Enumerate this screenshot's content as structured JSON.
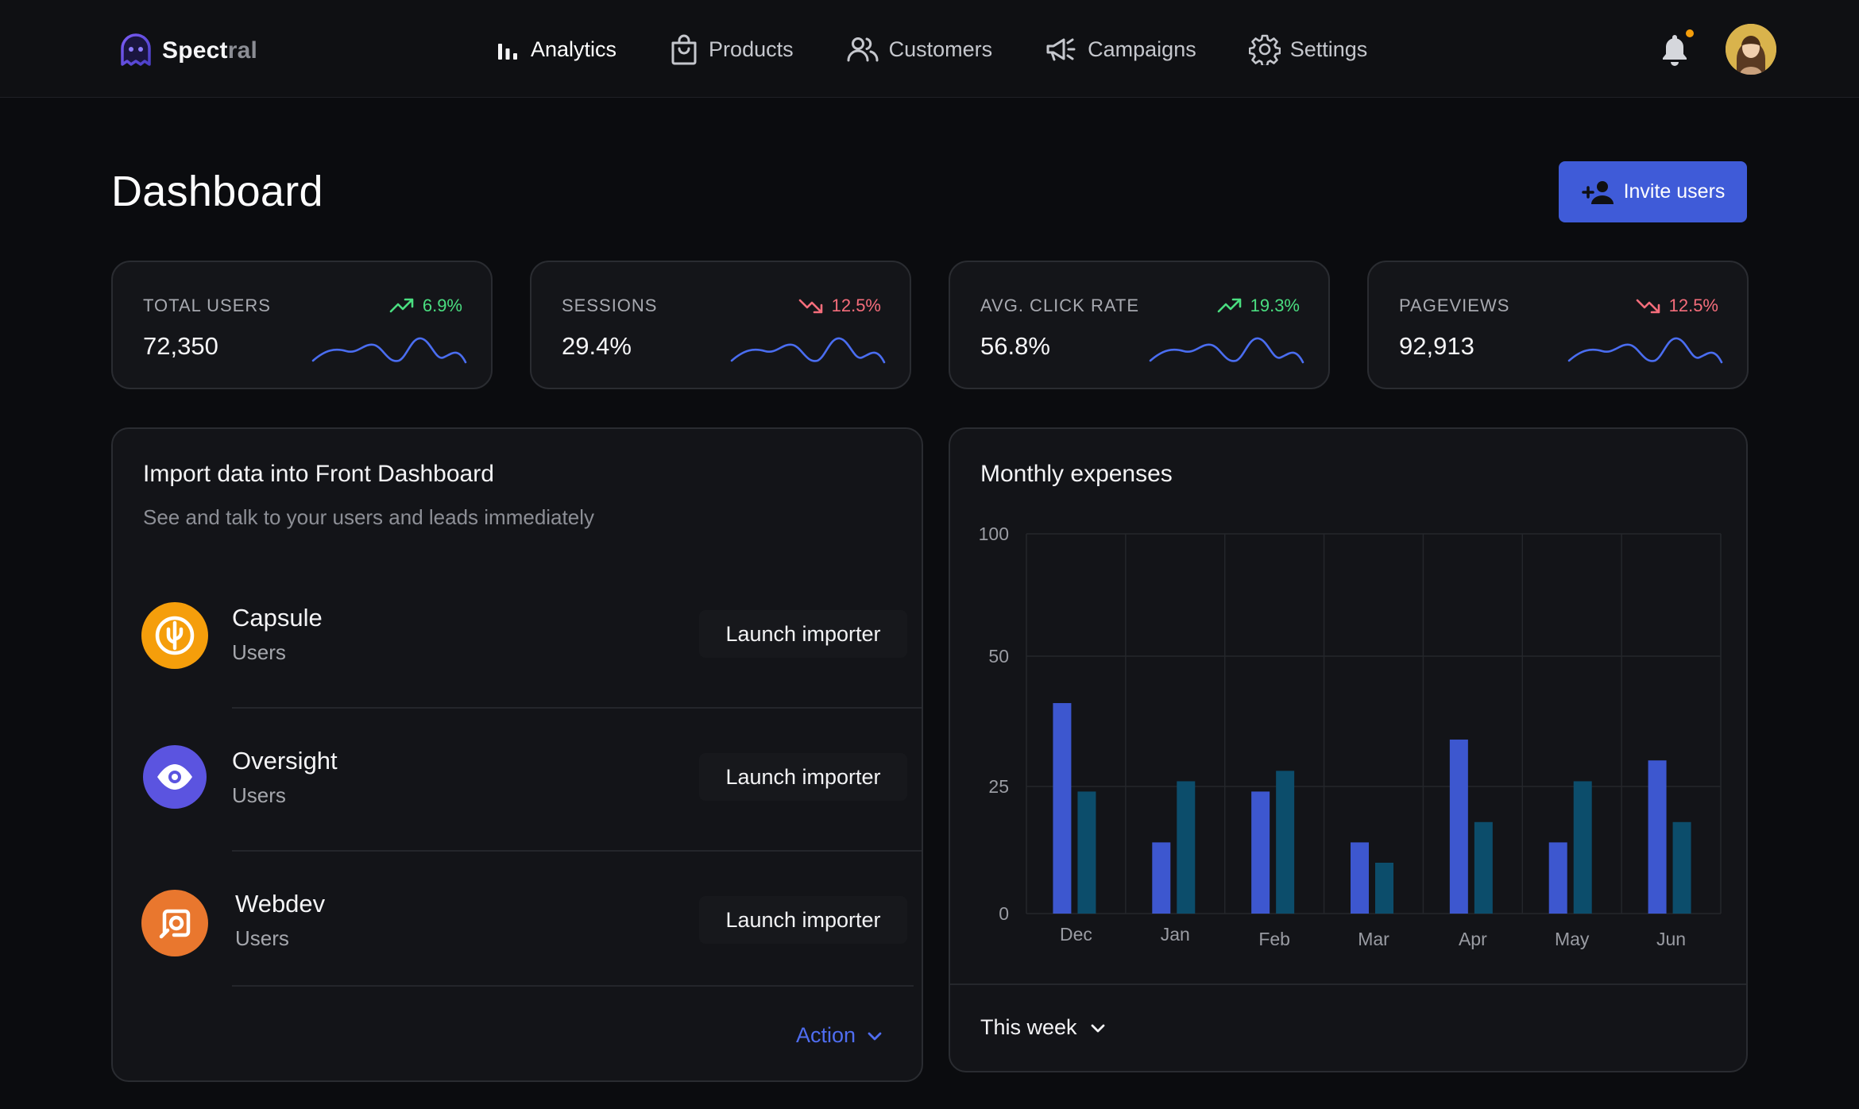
{
  "brand": {
    "name_main": "Spect",
    "name_fade": "ral"
  },
  "nav": [
    {
      "label": "Analytics",
      "icon": "bar-chart-icon",
      "active": true
    },
    {
      "label": "Products",
      "icon": "shopping-bag-icon",
      "active": false
    },
    {
      "label": "Customers",
      "icon": "users-icon",
      "active": false
    },
    {
      "label": "Campaigns",
      "icon": "megaphone-icon",
      "active": false
    },
    {
      "label": "Settings",
      "icon": "gear-icon",
      "active": false
    }
  ],
  "header": {
    "title": "Dashboard",
    "invite_label": "Invite users"
  },
  "stats": [
    {
      "label": "TOTAL USERS",
      "value": "72,350",
      "trend": "6.9%",
      "direction": "up"
    },
    {
      "label": "SESSIONS",
      "value": "29.4%",
      "trend": "12.5%",
      "direction": "down"
    },
    {
      "label": "AVG. CLICK RATE",
      "value": "56.8%",
      "trend": "19.3%",
      "direction": "up"
    },
    {
      "label": "PAGEVIEWS",
      "value": "92,913",
      "trend": "12.5%",
      "direction": "down"
    }
  ],
  "importer": {
    "title": "Import data into Front Dashboard",
    "subtitle": "See and talk to your users and leads immediately",
    "items": [
      {
        "name": "Capsule",
        "meta": "Users",
        "button": "Launch importer",
        "color": "#f59e0b"
      },
      {
        "name": "Oversight",
        "meta": "Users",
        "button": "Launch importer",
        "color": "#5b54e0"
      },
      {
        "name": "Webdev",
        "meta": "Users",
        "button": "Launch importer",
        "color": "#e9772e"
      }
    ],
    "action_label": "Action"
  },
  "expenses": {
    "title": "Monthly expenses",
    "period_label": "This week"
  },
  "chart_data": {
    "type": "bar",
    "title": "Monthly expenses",
    "categories": [
      "Dec",
      "Jan",
      "Feb",
      "Mar",
      "Apr",
      "May",
      "Jun"
    ],
    "series": [
      {
        "values": [
          41,
          14,
          24,
          14,
          34,
          14,
          30
        ],
        "color": "#3d57cf"
      },
      {
        "values": [
          24,
          26,
          28,
          10,
          18,
          26,
          18
        ],
        "color": "#0c4d6b"
      }
    ],
    "y_ticks": [
      0,
      25,
      50,
      100
    ],
    "grid": true
  }
}
